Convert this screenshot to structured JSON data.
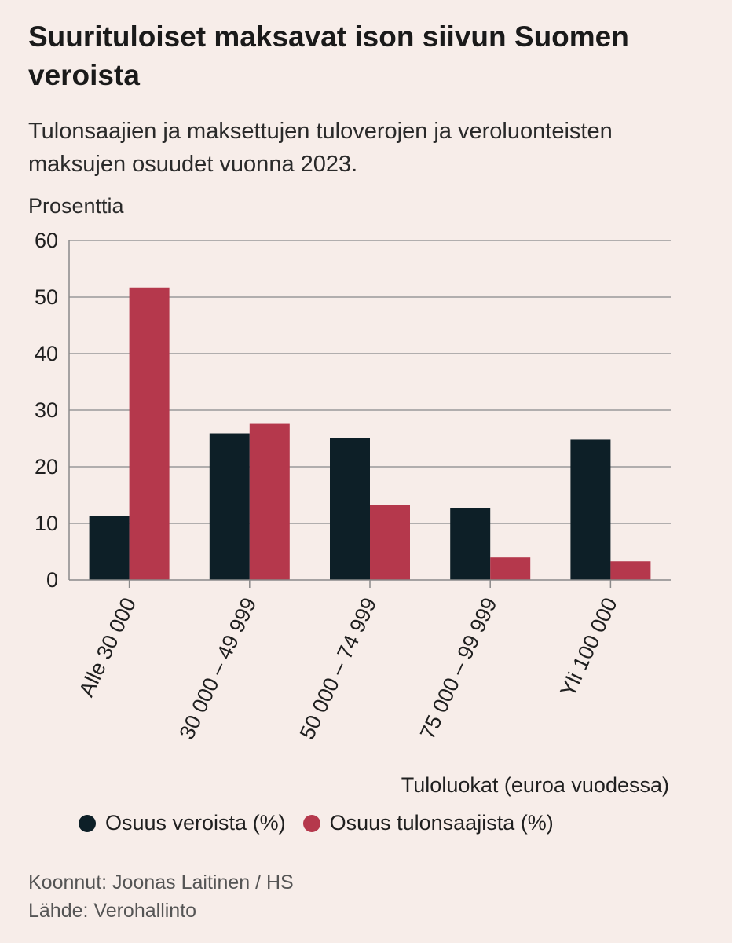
{
  "title": "Suurituloiset maksavat ison siivun Suomen veroista",
  "subtitle": "Tulonsaajien ja maksettujen tuloverojen ja veroluonteisten maksujen osuudet vuonna 2023.",
  "unit_label": "Prosenttia",
  "credits": {
    "author": "Koonnut: Joonas Laitinen / HS",
    "source": "Lähde: Verohallinto"
  },
  "chart_data": {
    "type": "bar",
    "categories": [
      "Alle 30 000",
      "30 000 – 49 999",
      "50 000 – 74 999",
      "75 000 – 99 999",
      "Yli 100 000"
    ],
    "series": [
      {
        "name": "Osuus veroista (%)",
        "color": "#0d1f27",
        "values": [
          11.3,
          25.9,
          25.1,
          12.7,
          24.8
        ]
      },
      {
        "name": "Osuus tulonsaajista (%)",
        "color": "#b5384c",
        "values": [
          51.7,
          27.7,
          13.2,
          4.0,
          3.3
        ]
      }
    ],
    "xlabel": "Tuloluokat (euroa vuodessa)",
    "ylabel": "Prosenttia",
    "ylim": [
      0,
      60
    ],
    "yticks": [
      0,
      10,
      20,
      30,
      40,
      50,
      60
    ],
    "grid": true,
    "legend_position": "bottom"
  }
}
